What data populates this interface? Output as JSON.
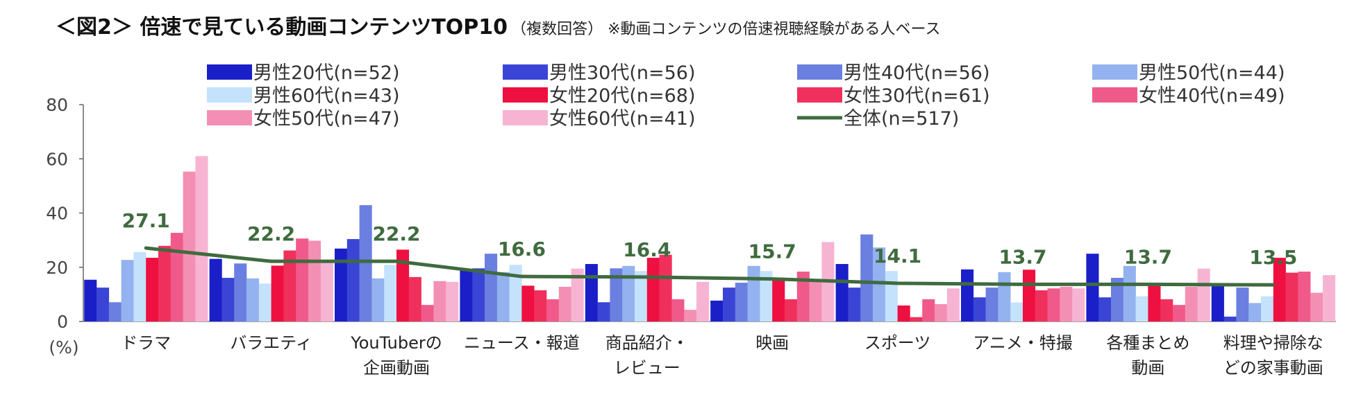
{
  "title": {
    "main": "＜図2＞ 倍速で見ている動画コンテンツTOP10",
    "sub": "（複数回答） ※動画コンテンツの倍速視聴経験がある人ベース"
  },
  "chart_data": {
    "type": "bar",
    "title": "倍速で見ている動画コンテンツTOP10",
    "ylabel": "(%)",
    "ylim": [
      0,
      80
    ],
    "yticks": [
      "0",
      "20",
      "40",
      "60",
      "80"
    ],
    "categories": [
      [
        "ドラマ"
      ],
      [
        "バラエティ"
      ],
      [
        "YouTuberの",
        "企画動画"
      ],
      [
        "ニュース・報道"
      ],
      [
        "商品紹介・",
        "レビュー"
      ],
      [
        "映画"
      ],
      [
        "スポーツ"
      ],
      [
        "アニメ・特撮"
      ],
      [
        "各種まとめ",
        "動画"
      ],
      [
        "料理や掃除な",
        "どの家事動画"
      ]
    ],
    "series": [
      {
        "name": "男性20代(n=52)",
        "color": "#1a1fc8",
        "values": [
          15.4,
          23.1,
          26.9,
          19.2,
          21.2,
          7.7,
          21.2,
          19.2,
          25.0,
          13.5
        ]
      },
      {
        "name": "男性30代(n=56)",
        "color": "#3a45d6",
        "values": [
          12.5,
          16.1,
          30.4,
          19.6,
          7.1,
          12.5,
          12.5,
          8.9,
          8.9,
          1.8
        ]
      },
      {
        "name": "男性40代(n=56)",
        "color": "#6b7fe0",
        "values": [
          7.1,
          21.4,
          42.9,
          25.0,
          19.6,
          14.3,
          32.1,
          12.5,
          16.1,
          12.5
        ]
      },
      {
        "name": "男性50代(n=44)",
        "color": "#93b2ef",
        "values": [
          22.7,
          15.9,
          15.9,
          18.2,
          20.5,
          20.5,
          27.3,
          18.2,
          20.5,
          6.8
        ]
      },
      {
        "name": "男性60代(n=43)",
        "color": "#c4e2fb",
        "values": [
          25.6,
          14.0,
          20.9,
          20.9,
          18.6,
          18.6,
          18.6,
          7.0,
          9.3,
          9.3
        ]
      },
      {
        "name": "女性20代(n=68)",
        "color": "#ee1040",
        "values": [
          23.5,
          20.6,
          26.5,
          13.2,
          23.5,
          16.2,
          5.9,
          19.1,
          13.2,
          23.5
        ]
      },
      {
        "name": "女性30代(n=61)",
        "color": "#f0305c",
        "values": [
          27.9,
          26.2,
          16.4,
          11.5,
          24.6,
          8.2,
          1.6,
          11.5,
          8.2,
          18.0
        ]
      },
      {
        "name": "女性40代(n=49)",
        "color": "#f05a8a",
        "values": [
          32.7,
          30.6,
          6.1,
          8.2,
          8.2,
          18.4,
          8.2,
          12.2,
          6.1,
          18.4
        ]
      },
      {
        "name": "女性50代(n=47)",
        "color": "#f48fb4",
        "values": [
          55.3,
          29.8,
          14.9,
          12.8,
          4.3,
          14.9,
          6.4,
          12.8,
          12.8,
          10.6
        ]
      },
      {
        "name": "女性60代(n=41)",
        "color": "#f6b4d2",
        "values": [
          61.0,
          22.0,
          14.6,
          19.5,
          14.6,
          29.3,
          12.2,
          12.2,
          19.5,
          17.1
        ]
      }
    ],
    "total": {
      "name": "全体(n=517)",
      "color": "#3f6b3f",
      "values": [
        27.1,
        22.2,
        22.2,
        16.6,
        16.4,
        15.7,
        14.1,
        13.7,
        13.7,
        13.5
      ],
      "labels": [
        "27.1",
        "22.2",
        "22.2",
        "16.6",
        "16.4",
        "15.7",
        "14.1",
        "13.7",
        "13.7",
        "13.5"
      ]
    },
    "legend_position": "top"
  }
}
